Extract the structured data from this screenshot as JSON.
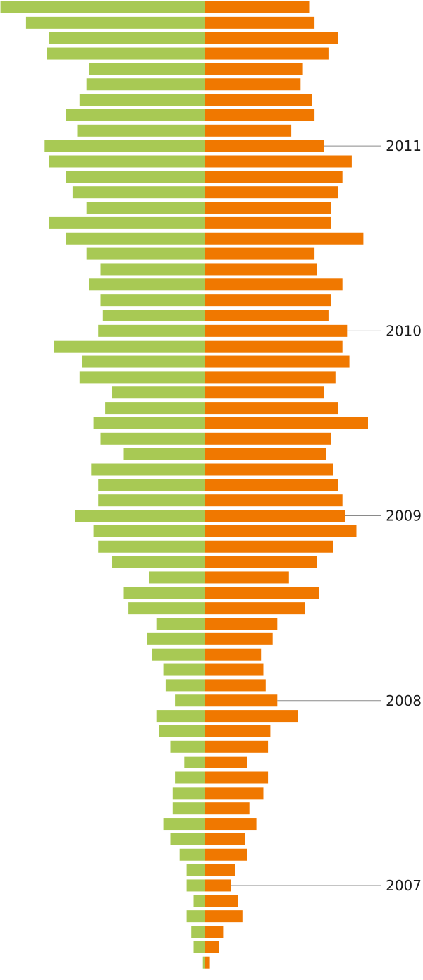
{
  "chart_data": {
    "type": "bar",
    "orientation": "horizontal-diverging",
    "order": "newest-first",
    "colors": {
      "left": "#a8c954",
      "right": "#f07800"
    },
    "series": [
      {
        "side": "left",
        "values": [
          88,
          77,
          67,
          68,
          50,
          51,
          54,
          60,
          55,
          69,
          67,
          60,
          57,
          51,
          67,
          60,
          51,
          45,
          50,
          45,
          44,
          46,
          65,
          53,
          54,
          40,
          43,
          48,
          45,
          35,
          49,
          46,
          46,
          56,
          48,
          46,
          40,
          24,
          35,
          33,
          21,
          25,
          23,
          18,
          17,
          13,
          21,
          20,
          15,
          9,
          13,
          14,
          14,
          18,
          15,
          11,
          8,
          8,
          5,
          8,
          6,
          5,
          1
        ]
      },
      {
        "side": "right",
        "values": [
          45,
          47,
          57,
          53,
          42,
          41,
          46,
          47,
          37,
          51,
          63,
          59,
          57,
          54,
          54,
          68,
          47,
          48,
          59,
          54,
          53,
          61,
          59,
          62,
          56,
          51,
          57,
          70,
          54,
          52,
          55,
          57,
          59,
          60,
          65,
          55,
          48,
          36,
          49,
          43,
          31,
          29,
          24,
          25,
          26,
          31,
          40,
          28,
          27,
          18,
          27,
          25,
          19,
          22,
          17,
          18,
          13,
          11,
          14,
          16,
          8,
          6,
          2
        ]
      }
    ],
    "annotations": [
      {
        "label": "2011",
        "index": 9
      },
      {
        "label": "2010",
        "index": 21
      },
      {
        "label": "2009",
        "index": 33
      },
      {
        "label": "2008",
        "index": 45
      },
      {
        "label": "2007",
        "index": 57
      }
    ]
  }
}
